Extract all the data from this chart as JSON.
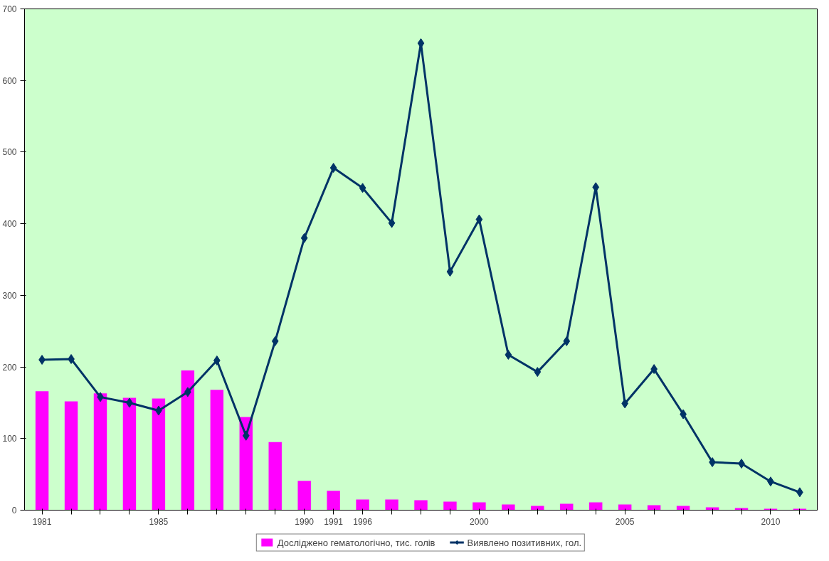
{
  "chart_data": {
    "type": "bar",
    "categories": [
      "1981",
      null,
      null,
      null,
      "1985",
      null,
      null,
      null,
      null,
      "1990",
      "1991",
      "1996",
      null,
      null,
      null,
      "2000",
      null,
      null,
      null,
      null,
      "2005",
      null,
      null,
      null,
      null,
      "2010",
      null
    ],
    "series": [
      {
        "name": "Досліджено гематологічно, тис. голів",
        "color": "#ff00ff",
        "values": [
          166,
          152,
          163,
          157,
          156,
          195,
          168,
          130,
          95,
          41,
          27,
          15,
          15,
          14,
          12,
          11,
          8,
          6,
          9,
          11,
          8,
          7,
          6,
          4,
          3,
          2,
          2
        ]
      },
      {
        "name": "Виявлено позитивних, гол.",
        "type": "line",
        "color": "#003366",
        "marker": "diamond",
        "values": [
          210,
          211,
          158,
          150,
          139,
          165,
          209,
          104,
          236,
          380,
          478,
          450,
          401,
          652,
          333,
          406,
          217,
          193,
          236,
          451,
          149,
          197,
          134,
          67,
          65,
          40,
          25
        ]
      }
    ],
    "ylim": [
      0,
      700
    ],
    "yticks": [
      0,
      100,
      200,
      300,
      400,
      500,
      600,
      700
    ],
    "grid": false,
    "legend": "bottom"
  }
}
